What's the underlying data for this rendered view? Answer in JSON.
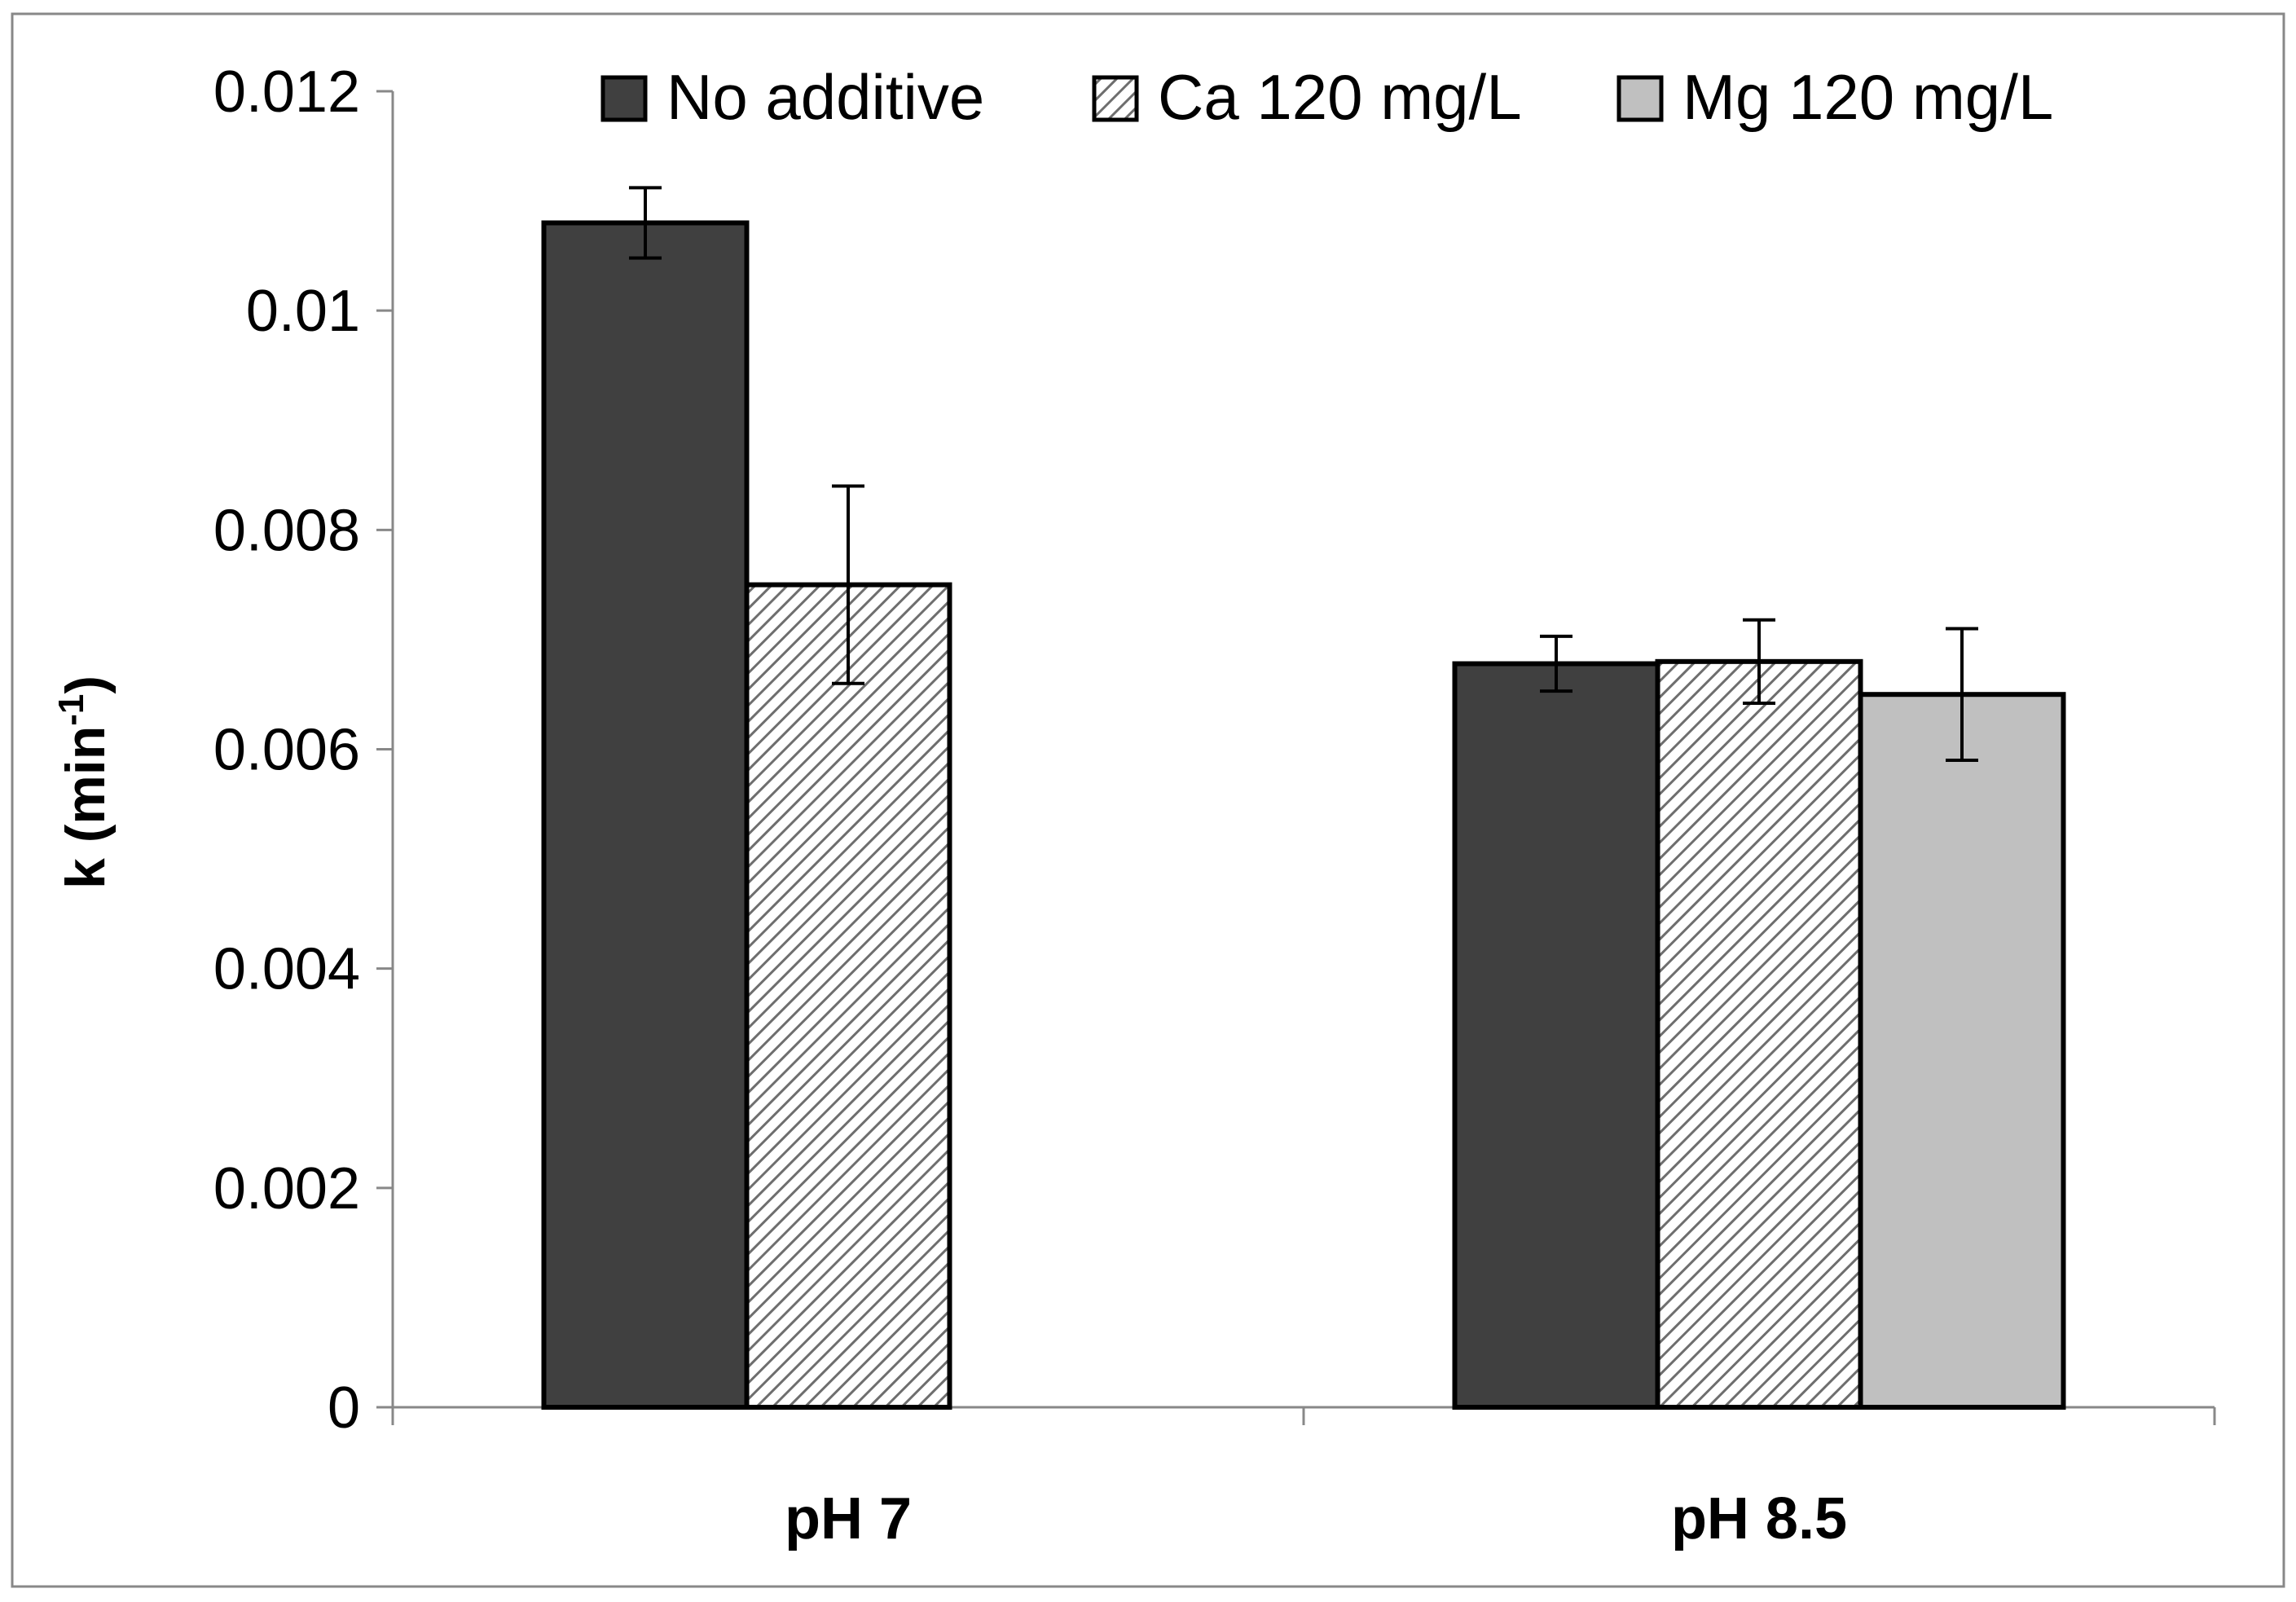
{
  "chart_data": {
    "type": "bar",
    "categories": [
      "pH 7",
      "pH 8.5"
    ],
    "series": [
      {
        "name": "No additive",
        "values": [
          0.0108,
          0.00678
        ],
        "errors": [
          0.00032,
          0.00025
        ],
        "fill": "#404040",
        "pattern": "solid"
      },
      {
        "name": "Ca 120 mg/L",
        "values": [
          0.0075,
          0.0068
        ],
        "errors": [
          0.0009,
          0.00038
        ],
        "fill": "#ffffff",
        "pattern": "diagonal-hatch"
      },
      {
        "name": "Mg 120 mg/L",
        "values": [
          null,
          0.0065
        ],
        "errors": [
          null,
          0.0006
        ],
        "fill": "#c0c0c0",
        "pattern": "solid"
      }
    ],
    "ylabel": {
      "main": "k (min",
      "superscript": "-1",
      "close": ")"
    },
    "xlabel": "",
    "ylim": [
      0,
      0.012
    ],
    "yticks": [
      0,
      0.002,
      0.004,
      0.006,
      0.008,
      0.01,
      0.012
    ],
    "ytick_labels": [
      "0",
      "0.002",
      "0.004",
      "0.006",
      "0.008",
      "0.01",
      "0.012"
    ],
    "grid": false,
    "legend_position": "top"
  }
}
